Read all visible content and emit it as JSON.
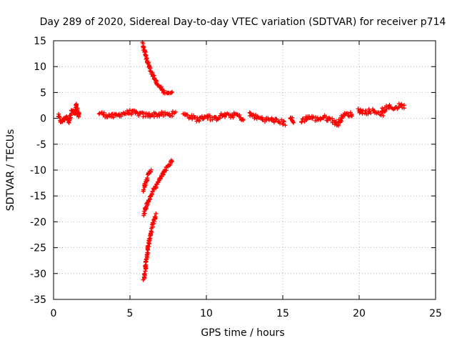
{
  "chart_data": {
    "type": "scatter",
    "title": "Day 289 of 2020, Sidereal Day-to-day VTEC variation (SDTVAR) for receiver p714",
    "xlabel": "GPS time / hours",
    "ylabel": "SDTVAR / TECUs",
    "xlim": [
      0,
      25
    ],
    "ylim": [
      -35,
      15
    ],
    "xticks": [
      0,
      5,
      10,
      15,
      20,
      25
    ],
    "yticks": [
      15,
      10,
      5,
      0,
      -5,
      -10,
      -15,
      -20,
      -25,
      -30,
      -35
    ],
    "grid": true,
    "marker": "+",
    "color": "#ff0000",
    "series": [
      {
        "name": "SDTVAR",
        "segments": [
          [
            [
              0.3,
              0.5
            ],
            [
              0.5,
              -0.8
            ],
            [
              0.8,
              0.3
            ],
            [
              1.0,
              -0.5
            ],
            [
              1.2,
              1.5
            ],
            [
              1.4,
              0.8
            ],
            [
              1.5,
              2.5
            ],
            [
              1.6,
              0.5
            ],
            [
              1.7,
              1.2
            ]
          ],
          [
            [
              3.0,
              1.0
            ],
            [
              3.5,
              0.6
            ],
            [
              4.0,
              0.4
            ],
            [
              4.5,
              0.9
            ],
            [
              5.0,
              1.2
            ],
            [
              5.5,
              0.9
            ],
            [
              6.0,
              0.6
            ],
            [
              6.5,
              0.7
            ],
            [
              7.0,
              0.8
            ],
            [
              7.5,
              0.7
            ],
            [
              8.0,
              1.0
            ]
          ],
          [
            [
              5.8,
              14.5
            ],
            [
              6.1,
              11.5
            ],
            [
              6.4,
              9.0
            ],
            [
              6.8,
              6.5
            ],
            [
              7.2,
              5.2
            ],
            [
              7.8,
              4.8
            ]
          ],
          [
            [
              5.85,
              -14.0
            ],
            [
              6.0,
              -12.5
            ],
            [
              6.2,
              -11.0
            ],
            [
              6.4,
              -9.8
            ]
          ],
          [
            [
              5.9,
              -18.5
            ],
            [
              6.2,
              -16.0
            ],
            [
              6.6,
              -13.5
            ],
            [
              7.0,
              -11.5
            ],
            [
              7.4,
              -9.5
            ],
            [
              7.8,
              -8.0
            ]
          ],
          [
            [
              5.9,
              -31.0
            ],
            [
              6.1,
              -27.0
            ],
            [
              6.3,
              -23.0
            ],
            [
              6.5,
              -20.5
            ],
            [
              6.7,
              -18.5
            ]
          ],
          [
            [
              8.5,
              0.8
            ],
            [
              9.0,
              0.3
            ],
            [
              9.5,
              -0.3
            ],
            [
              10.0,
              0.5
            ],
            [
              10.5,
              -0.2
            ],
            [
              11.0,
              0.6
            ],
            [
              11.5,
              0.5
            ],
            [
              12.0,
              0.7
            ],
            [
              12.5,
              -0.5
            ]
          ],
          [
            [
              12.8,
              0.8
            ],
            [
              13.3,
              0.2
            ],
            [
              13.8,
              -0.2
            ],
            [
              14.3,
              -0.3
            ],
            [
              14.8,
              -0.6
            ],
            [
              15.2,
              -1.0
            ]
          ],
          [
            [
              15.5,
              0.3
            ],
            [
              15.7,
              -1.0
            ]
          ],
          [
            [
              16.2,
              -0.5
            ],
            [
              16.7,
              0.3
            ],
            [
              17.2,
              -0.2
            ],
            [
              17.7,
              0.2
            ],
            [
              18.2,
              -0.3
            ],
            [
              18.6,
              -1.2
            ],
            [
              18.9,
              0.5
            ],
            [
              19.3,
              0.8
            ],
            [
              19.6,
              0.7
            ]
          ],
          [
            [
              19.9,
              1.6
            ],
            [
              20.4,
              1.2
            ],
            [
              20.9,
              1.5
            ],
            [
              21.4,
              1.0
            ],
            [
              21.7,
              0.9
            ]
          ],
          [
            [
              21.5,
              1.6
            ],
            [
              22.0,
              2.2
            ],
            [
              22.4,
              2.0
            ],
            [
              22.7,
              2.6
            ],
            [
              23.0,
              2.1
            ]
          ]
        ]
      }
    ]
  }
}
